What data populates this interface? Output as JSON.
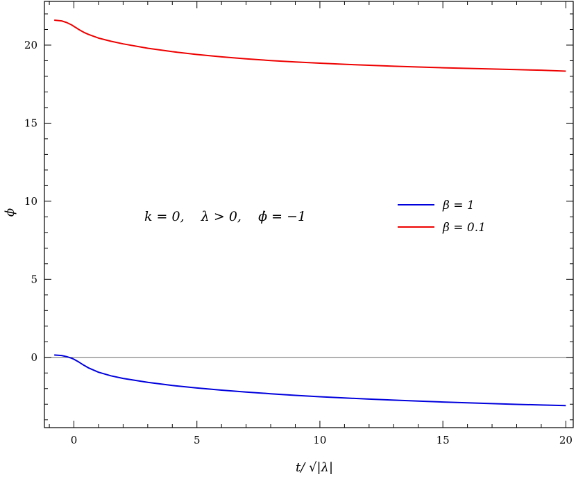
{
  "chart_data": {
    "type": "line",
    "title": "",
    "xlabel": "t/ √|λ|",
    "ylabel": "ϕ",
    "xlim": [
      -1.2,
      20.3
    ],
    "ylim": [
      -4.5,
      22.8
    ],
    "xticks": [
      0,
      5,
      10,
      15,
      20
    ],
    "yticks": [
      0,
      5,
      10,
      15,
      20
    ],
    "x_tick_labels": [
      "0",
      "5",
      "10",
      "15",
      "20"
    ],
    "y_tick_labels": [
      "0",
      "5",
      "10",
      "15",
      "20"
    ],
    "grid": false,
    "reference_line_y": 0,
    "annotation": "k = 0,    λ > 0,    ϕ̇ = −1",
    "legend_position": "right-middle",
    "series": [
      {
        "name": "β = 1",
        "color": "#0000dd",
        "x": [
          -0.8,
          -0.5,
          -0.3,
          -0.1,
          0.0,
          0.2,
          0.4,
          0.6,
          1.0,
          1.5,
          2.0,
          3.0,
          4.0,
          5.0,
          6.0,
          7.0,
          8.0,
          9.0,
          10.0,
          11.0,
          12.0,
          13.0,
          14.0,
          15.0,
          16.0,
          17.0,
          18.0,
          19.0,
          20.0
        ],
        "y": [
          0.15,
          0.12,
          0.05,
          -0.05,
          -0.12,
          -0.3,
          -0.5,
          -0.68,
          -0.95,
          -1.18,
          -1.35,
          -1.6,
          -1.8,
          -1.96,
          -2.1,
          -2.22,
          -2.33,
          -2.43,
          -2.52,
          -2.6,
          -2.67,
          -2.74,
          -2.8,
          -2.86,
          -2.91,
          -2.96,
          -3.01,
          -3.05,
          -3.09
        ]
      },
      {
        "name": "β = 0.1",
        "color": "#ee0000",
        "x": [
          -0.8,
          -0.5,
          -0.3,
          -0.1,
          0.0,
          0.2,
          0.4,
          0.6,
          1.0,
          1.5,
          2.0,
          3.0,
          4.0,
          5.0,
          6.0,
          7.0,
          8.0,
          9.0,
          10.0,
          11.0,
          12.0,
          13.0,
          14.0,
          15.0,
          16.0,
          17.0,
          18.0,
          19.0,
          20.0
        ],
        "y": [
          21.6,
          21.55,
          21.45,
          21.3,
          21.2,
          21.0,
          20.82,
          20.68,
          20.45,
          20.25,
          20.08,
          19.8,
          19.58,
          19.4,
          19.25,
          19.12,
          19.01,
          18.92,
          18.84,
          18.77,
          18.71,
          18.65,
          18.6,
          18.55,
          18.51,
          18.47,
          18.43,
          18.39,
          18.33
        ]
      }
    ]
  }
}
